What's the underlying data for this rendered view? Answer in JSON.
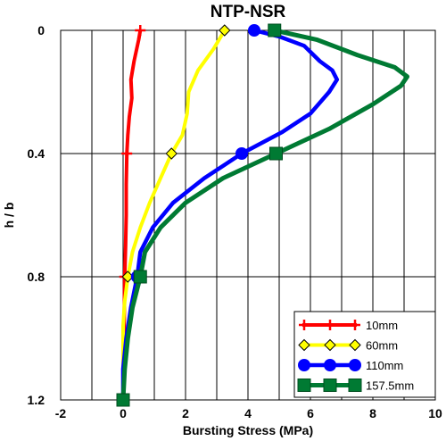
{
  "chart_data": {
    "type": "line",
    "title": "NTP-NSR",
    "xlabel": "Bursting Stress (MPa)",
    "ylabel": "h / b",
    "xlim": [
      -2,
      10
    ],
    "ylim": [
      0,
      1.2
    ],
    "y_inverted": true,
    "x_ticks": [
      -2,
      0,
      2,
      4,
      6,
      8,
      10
    ],
    "y_ticks": [
      0,
      0.4,
      0.8,
      1.2
    ],
    "x_tick_labels": [
      "-2",
      "0",
      "2",
      "4",
      "6",
      "8",
      "10"
    ],
    "y_tick_labels": [
      "0",
      "0.4",
      "0.8",
      "1.2"
    ],
    "grid": true,
    "legend_position": "bottom-right",
    "series": [
      {
        "name": "10mm",
        "color": "#ff0000",
        "marker": "plus",
        "points": [
          [
            0.55,
            0
          ],
          [
            0.5,
            0.03
          ],
          [
            0.35,
            0.1
          ],
          [
            0.25,
            0.16
          ],
          [
            0.28,
            0.22
          ],
          [
            0.2,
            0.28
          ],
          [
            0.15,
            0.34
          ],
          [
            0.12,
            0.4
          ],
          [
            0.1,
            0.5
          ],
          [
            0.1,
            0.6
          ],
          [
            0.08,
            0.7
          ],
          [
            0.05,
            0.8
          ],
          [
            0.04,
            0.9
          ],
          [
            0.03,
            1.0
          ],
          [
            0.02,
            1.1
          ],
          [
            0.0,
            1.2
          ]
        ],
        "marker_points": [
          [
            0.55,
            0
          ],
          [
            0.12,
            0.4
          ],
          [
            0.05,
            0.8
          ]
        ]
      },
      {
        "name": "60mm",
        "color": "#ffff00",
        "marker": "diamond",
        "points": [
          [
            3.25,
            0
          ],
          [
            2.9,
            0.06
          ],
          [
            2.4,
            0.13
          ],
          [
            2.1,
            0.2
          ],
          [
            2.05,
            0.27
          ],
          [
            1.9,
            0.34
          ],
          [
            1.55,
            0.4
          ],
          [
            1.2,
            0.48
          ],
          [
            0.85,
            0.56
          ],
          [
            0.55,
            0.64
          ],
          [
            0.3,
            0.72
          ],
          [
            0.15,
            0.8
          ],
          [
            0.05,
            0.88
          ],
          [
            0.0,
            0.96
          ],
          [
            0.0,
            1.2
          ]
        ],
        "marker_points": [
          [
            3.25,
            0
          ],
          [
            1.55,
            0.4
          ],
          [
            0.15,
            0.8
          ]
        ]
      },
      {
        "name": "110mm",
        "color": "#0000ff",
        "marker": "circle",
        "points": [
          [
            4.2,
            0
          ],
          [
            5.0,
            0.02
          ],
          [
            5.8,
            0.05
          ],
          [
            6.3,
            0.1
          ],
          [
            6.7,
            0.13
          ],
          [
            6.85,
            0.16
          ],
          [
            6.6,
            0.2
          ],
          [
            6.0,
            0.27
          ],
          [
            5.1,
            0.33
          ],
          [
            3.8,
            0.4
          ],
          [
            2.6,
            0.48
          ],
          [
            1.6,
            0.56
          ],
          [
            0.95,
            0.64
          ],
          [
            0.55,
            0.72
          ],
          [
            0.45,
            0.8
          ],
          [
            0.25,
            0.9
          ],
          [
            0.1,
            1.0
          ],
          [
            0.0,
            1.1
          ],
          [
            0.0,
            1.2
          ]
        ],
        "marker_points": [
          [
            4.2,
            0
          ],
          [
            3.8,
            0.4
          ],
          [
            0.45,
            0.8
          ]
        ]
      },
      {
        "name": "157.5mm",
        "color": "#007a33",
        "marker": "square",
        "points": [
          [
            4.85,
            0
          ],
          [
            6.2,
            0.03
          ],
          [
            7.5,
            0.08
          ],
          [
            8.7,
            0.12
          ],
          [
            9.1,
            0.15
          ],
          [
            8.9,
            0.18
          ],
          [
            8.0,
            0.24
          ],
          [
            6.6,
            0.32
          ],
          [
            4.9,
            0.4
          ],
          [
            3.2,
            0.48
          ],
          [
            2.0,
            0.56
          ],
          [
            1.2,
            0.64
          ],
          [
            0.7,
            0.72
          ],
          [
            0.55,
            0.8
          ],
          [
            0.3,
            0.9
          ],
          [
            0.15,
            1.0
          ],
          [
            0.05,
            1.1
          ],
          [
            0.0,
            1.2
          ]
        ],
        "marker_points": [
          [
            4.85,
            0
          ],
          [
            4.9,
            0.4
          ],
          [
            0.55,
            0.8
          ],
          [
            0.0,
            1.2
          ]
        ]
      }
    ]
  }
}
